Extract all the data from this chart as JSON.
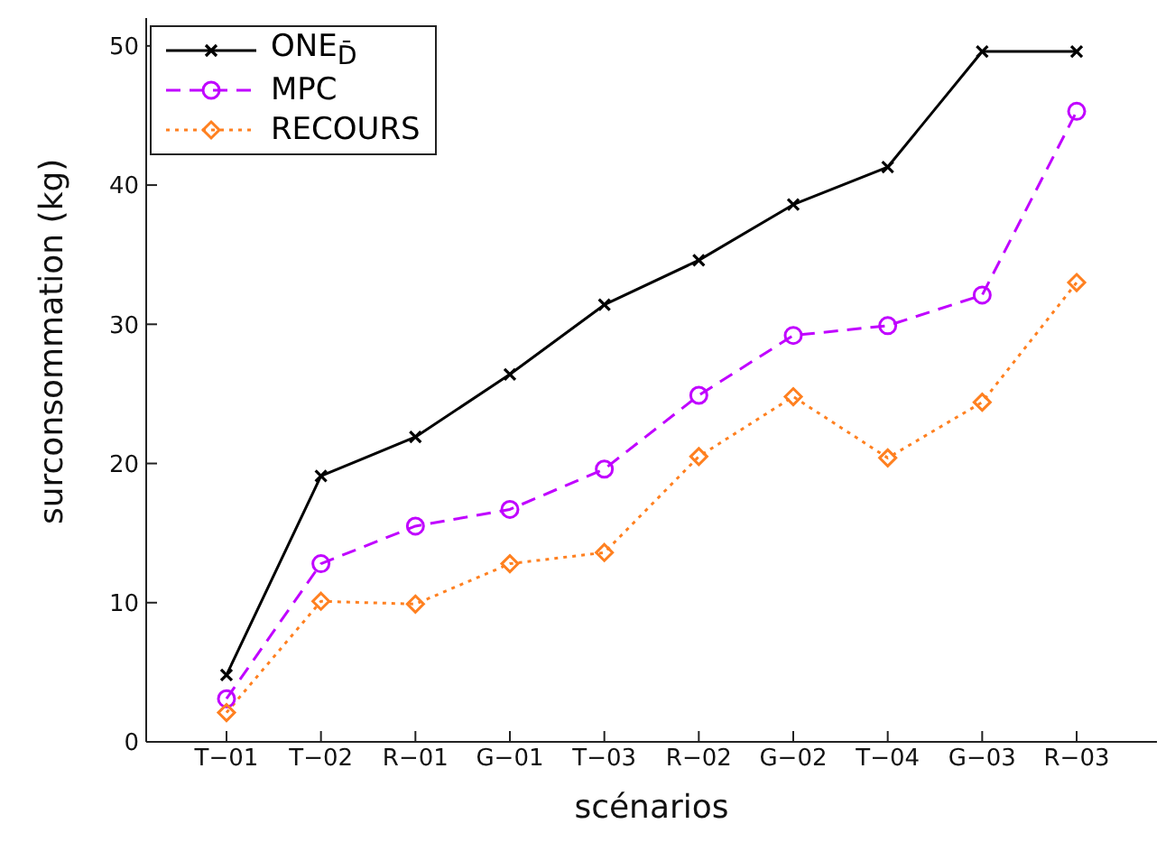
{
  "chart_data": {
    "type": "line",
    "xlabel": "scénarios",
    "ylabel": "surconsommation (kg)",
    "categories": [
      "T−01",
      "T−02",
      "R−01",
      "G−01",
      "T−03",
      "R−02",
      "G−02",
      "T−04",
      "G−03",
      "R−03"
    ],
    "ylim": [
      0,
      52
    ],
    "yticks": [
      0,
      10,
      20,
      30,
      40,
      50
    ],
    "grid": false,
    "legend": "top left",
    "series": [
      {
        "name": "ONE$_{D̄}$",
        "color": "#000000",
        "marker": "cross",
        "line_style": "solid",
        "values": [
          4.8,
          19.1,
          21.9,
          26.4,
          31.4,
          34.6,
          38.6,
          41.3,
          49.6,
          49.6
        ]
      },
      {
        "name": "MPC",
        "color": "#c000ff",
        "marker": "circle",
        "line_style": "dashed",
        "values": [
          3.1,
          12.8,
          15.5,
          16.7,
          19.6,
          24.9,
          29.2,
          29.9,
          32.1,
          45.3
        ]
      },
      {
        "name": "RECOURS",
        "color": "#ff8020",
        "marker": "diamond",
        "line_style": "dotted",
        "values": [
          2.1,
          10.1,
          9.9,
          12.8,
          13.6,
          20.5,
          24.8,
          20.4,
          24.4,
          33.0
        ]
      }
    ]
  }
}
